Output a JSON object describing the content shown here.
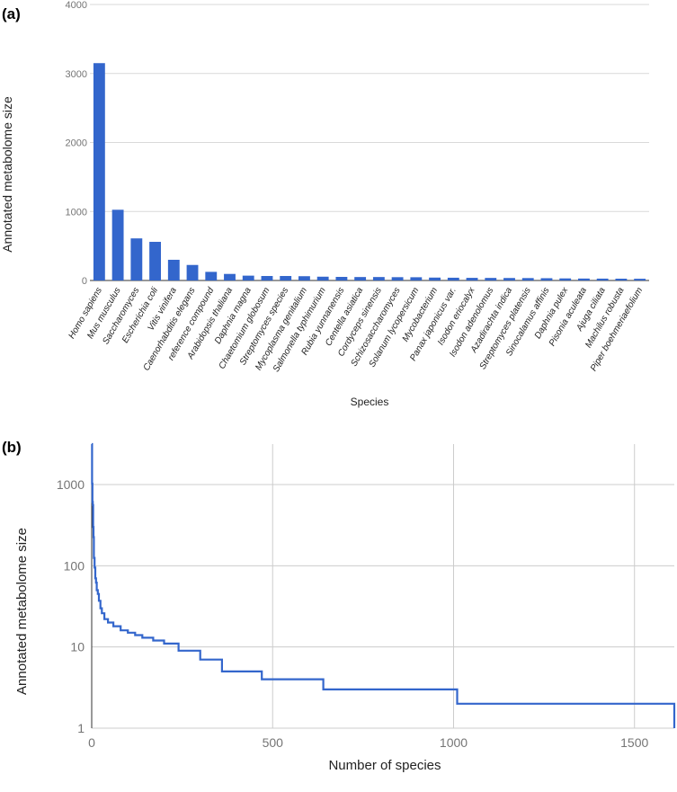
{
  "panels": {
    "a": "(a)",
    "b": "(b)"
  },
  "chart_data": [
    {
      "type": "bar",
      "panel": "(a)",
      "title": "",
      "xlabel": "Species",
      "ylabel": "Annotated metabolome size",
      "ylim": [
        0,
        4000
      ],
      "yticks": [
        0,
        1000,
        2000,
        3000,
        4000
      ],
      "grid": true,
      "categories": [
        "Homo sapiens",
        "Mus musculus",
        "Saccharomyces",
        "Escherichia coli",
        "Vitis vinifera",
        "Caenorhabditis elegans",
        "reference compound",
        "Arabidopsis thaliana",
        "Daphnia magna",
        "Chaetomium globosum",
        "Streptomyces species",
        "Mycoplasma genitalium",
        "Salmonella typhimurium",
        "Rubia yunnanensis",
        "Centella asiatica",
        "Cordyceps sinensis",
        "Schizosaccharomyces",
        "Solanum lycopersicum",
        "Mycobacterium",
        "Panax japonicus var.",
        "Isodon eriocalyx",
        "Isodon adenolomus",
        "Azadirachta indica",
        "Streptomyces platensis",
        "Sinocalamus affinis",
        "Daphnia pulex",
        "Pisonia aculeata",
        "Ajuga ciliata",
        "Machilus robusta",
        "Piper boehmeriaefolium"
      ],
      "values": [
        3150,
        1025,
        610,
        560,
        300,
        225,
        125,
        95,
        70,
        65,
        65,
        62,
        55,
        52,
        50,
        50,
        48,
        47,
        42,
        40,
        38,
        37,
        36,
        35,
        33,
        30,
        28,
        27,
        26,
        25
      ]
    },
    {
      "type": "line",
      "panel": "(b)",
      "title": "",
      "xlabel": "Number of species",
      "ylabel": "Annotated metabolome size",
      "yscale": "log",
      "xlim": [
        0,
        1610
      ],
      "ylim": [
        1,
        3150
      ],
      "xticks": [
        0,
        500,
        1000,
        1500
      ],
      "yticks": [
        1,
        10,
        100,
        1000
      ],
      "grid": true,
      "x": [
        0,
        1,
        2,
        3,
        4,
        5,
        6,
        8,
        10,
        12,
        14,
        17,
        20,
        24,
        28,
        35,
        45,
        60,
        80,
        100,
        120,
        140,
        170,
        200,
        240,
        300,
        360,
        470,
        640,
        1010,
        1610
      ],
      "y": [
        3150,
        1025,
        610,
        560,
        300,
        225,
        125,
        95,
        70,
        62,
        50,
        45,
        37,
        30,
        26,
        22,
        20,
        18,
        16,
        15,
        14,
        13,
        12,
        11,
        9,
        7,
        5,
        4,
        3,
        2,
        1
      ]
    }
  ]
}
